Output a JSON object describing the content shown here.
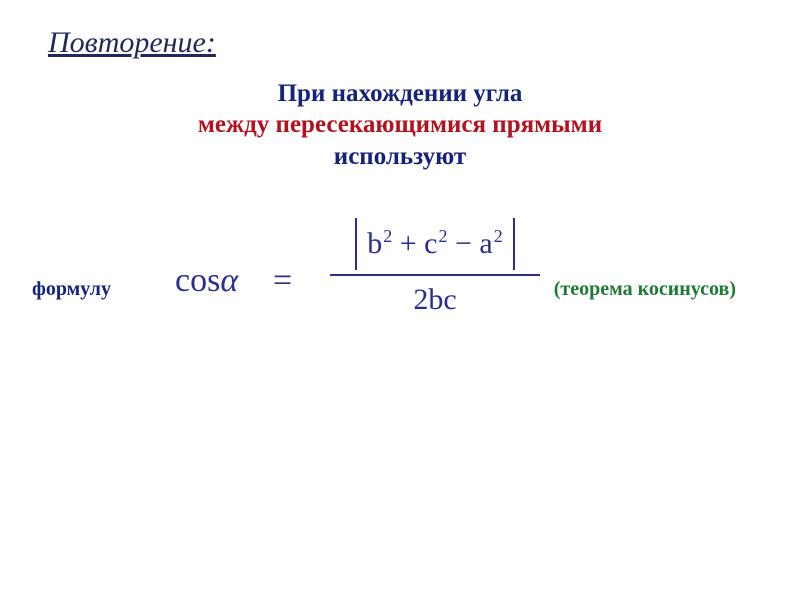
{
  "heading": "Повторение:",
  "subtitle": {
    "line1": "При нахождении угла",
    "line2": "между пересекающимися прямыми",
    "line3": "используют"
  },
  "formula_label": "формулу",
  "theorem_label": "(теорема косинусов)",
  "formula": {
    "lhs_func": "cos",
    "lhs_arg": "α",
    "equals": "=",
    "numerator_b": "b",
    "numerator_c": "c",
    "numerator_a": "a",
    "exp": "2",
    "plus": " + ",
    "minus": " − ",
    "denominator": "2bc",
    "text_color": "#2b2e8f"
  },
  "colors": {
    "background": "#ffffff",
    "heading": "#1f2a5b",
    "navy": "#14247b",
    "red": "#b2111d",
    "green": "#1e7a34",
    "formula": "#2b2e8f"
  },
  "typography": {
    "heading_fontsize": 30,
    "subtitle_fontsize": 25,
    "label_fontsize": 20,
    "formula_fontsize": 34,
    "formula_frac_fontsize": 30,
    "font_family": "Times New Roman"
  }
}
